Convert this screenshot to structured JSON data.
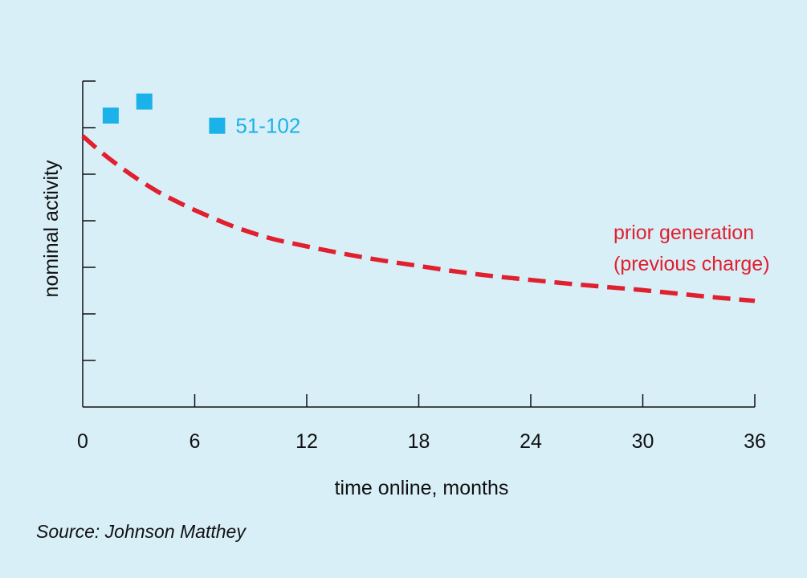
{
  "chart_data": {
    "type": "line",
    "title": "",
    "xlabel": "time online, months",
    "ylabel": "nominal activity",
    "source": "Source: Johnson Matthey",
    "xlim": [
      0,
      36
    ],
    "ylim": [
      0,
      7
    ],
    "x_ticks": [
      0,
      6,
      12,
      18,
      24,
      30,
      36
    ],
    "y_ticks": [
      0,
      1,
      2,
      3,
      4,
      5,
      6,
      7
    ],
    "y_tick_labels_shown": false,
    "grid": false,
    "series": [
      {
        "name": "prior generation\n(previous charge)",
        "style": "dashed-line",
        "color": "#e0202e",
        "x": [
          0,
          1,
          2,
          3,
          4,
          5,
          6,
          8,
          10,
          12,
          14,
          16,
          18,
          20,
          22,
          24,
          26,
          28,
          30,
          32,
          34,
          36
        ],
        "y": [
          5.82,
          5.47,
          5.16,
          4.88,
          4.63,
          4.42,
          4.23,
          3.89,
          3.63,
          3.45,
          3.29,
          3.15,
          3.03,
          2.91,
          2.81,
          2.73,
          2.65,
          2.58,
          2.51,
          2.43,
          2.35,
          2.28
        ]
      },
      {
        "name": "51-102",
        "style": "square-markers",
        "color": "#1ab2e8",
        "x": [
          1.5,
          3.3,
          7.2
        ],
        "y": [
          6.26,
          6.56,
          6.04
        ]
      }
    ]
  }
}
